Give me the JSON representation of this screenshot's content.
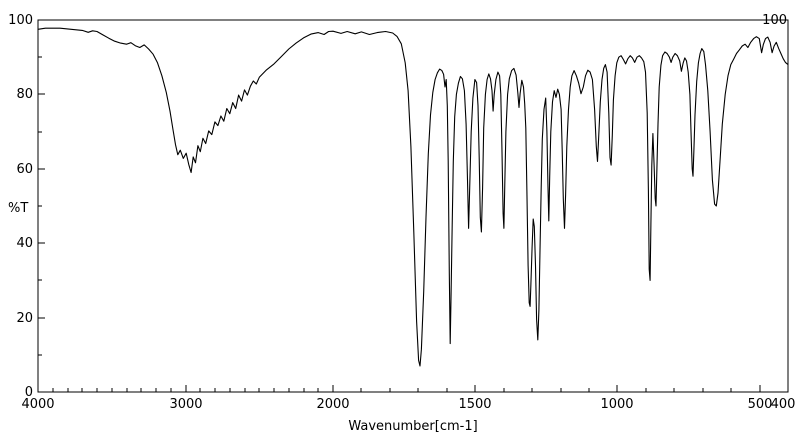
{
  "chart_data": {
    "type": "line",
    "xlabel": "Wavenumber[cm-1]",
    "ylabel": "%T",
    "colors": {
      "trace": "#000000",
      "frame": "#000000",
      "background": "#ffffff"
    },
    "x_axis": {
      "min": 400,
      "max": 4000,
      "reversed": true,
      "scale_break_at": 2000,
      "major_ticks": [
        4000,
        3000,
        2000,
        1500,
        1000,
        500,
        400
      ],
      "minor_tick_step": 100
    },
    "y_axis": {
      "min": 0,
      "max": 100,
      "major_ticks": [
        100,
        80,
        60,
        40,
        20,
        0
      ],
      "minor_tick_step": 10,
      "top_right_label": "100"
    },
    "series": [
      {
        "name": "%T",
        "color": "#000000",
        "points": [
          [
            4000,
            97.5
          ],
          [
            3950,
            97.8
          ],
          [
            3900,
            97.8
          ],
          [
            3850,
            97.8
          ],
          [
            3800,
            97.6
          ],
          [
            3750,
            97.4
          ],
          [
            3700,
            97.2
          ],
          [
            3660,
            96.7
          ],
          [
            3630,
            97.1
          ],
          [
            3600,
            96.9
          ],
          [
            3560,
            96.0
          ],
          [
            3520,
            95.1
          ],
          [
            3480,
            94.3
          ],
          [
            3440,
            93.8
          ],
          [
            3400,
            93.5
          ],
          [
            3370,
            93.9
          ],
          [
            3340,
            93.1
          ],
          [
            3310,
            92.6
          ],
          [
            3280,
            93.3
          ],
          [
            3250,
            92.2
          ],
          [
            3220,
            90.8
          ],
          [
            3190,
            88.5
          ],
          [
            3160,
            85.0
          ],
          [
            3130,
            80.5
          ],
          [
            3105,
            75.5
          ],
          [
            3085,
            70.5
          ],
          [
            3068,
            66.5
          ],
          [
            3052,
            63.8
          ],
          [
            3035,
            65.0
          ],
          [
            3015,
            62.8
          ],
          [
            2995,
            64.2
          ],
          [
            2978,
            61.2
          ],
          [
            2962,
            59.0
          ],
          [
            2948,
            63.2
          ],
          [
            2932,
            61.6
          ],
          [
            2916,
            66.2
          ],
          [
            2900,
            64.6
          ],
          [
            2882,
            68.2
          ],
          [
            2863,
            66.8
          ],
          [
            2843,
            70.2
          ],
          [
            2822,
            69.2
          ],
          [
            2801,
            72.6
          ],
          [
            2780,
            71.6
          ],
          [
            2760,
            74.2
          ],
          [
            2740,
            72.8
          ],
          [
            2720,
            76.2
          ],
          [
            2700,
            74.8
          ],
          [
            2680,
            77.8
          ],
          [
            2660,
            76.2
          ],
          [
            2640,
            79.8
          ],
          [
            2620,
            78.2
          ],
          [
            2600,
            81.2
          ],
          [
            2580,
            79.8
          ],
          [
            2560,
            82.2
          ],
          [
            2540,
            83.6
          ],
          [
            2520,
            82.8
          ],
          [
            2500,
            84.6
          ],
          [
            2450,
            86.6
          ],
          [
            2400,
            88.2
          ],
          [
            2350,
            90.2
          ],
          [
            2300,
            92.2
          ],
          [
            2250,
            93.8
          ],
          [
            2200,
            95.2
          ],
          [
            2150,
            96.2
          ],
          [
            2100,
            96.6
          ],
          [
            2060,
            96.1
          ],
          [
            2030,
            96.9
          ],
          [
            2000,
            97.0
          ],
          [
            1972,
            96.4
          ],
          [
            1950,
            96.9
          ],
          [
            1922,
            96.3
          ],
          [
            1900,
            96.8
          ],
          [
            1872,
            96.1
          ],
          [
            1845,
            96.6
          ],
          [
            1815,
            96.9
          ],
          [
            1790,
            96.5
          ],
          [
            1775,
            95.6
          ],
          [
            1760,
            93.6
          ],
          [
            1746,
            88.5
          ],
          [
            1736,
            81.0
          ],
          [
            1726,
            66.0
          ],
          [
            1716,
            43.0
          ],
          [
            1706,
            19.0
          ],
          [
            1699,
            8.5
          ],
          [
            1694,
            7.0
          ],
          [
            1689,
            11.5
          ],
          [
            1681,
            27.0
          ],
          [
            1673,
            47.0
          ],
          [
            1665,
            64.0
          ],
          [
            1657,
            74.5
          ],
          [
            1649,
            80.5
          ],
          [
            1641,
            84.0
          ],
          [
            1633,
            85.8
          ],
          [
            1625,
            86.8
          ],
          [
            1617,
            86.4
          ],
          [
            1611,
            85.4
          ],
          [
            1606,
            82.0
          ],
          [
            1602,
            84.0
          ],
          [
            1598,
            77.0
          ],
          [
            1595,
            62.0
          ],
          [
            1591,
            32.0
          ],
          [
            1588,
            13.0
          ],
          [
            1585,
            25.0
          ],
          [
            1581,
            45.0
          ],
          [
            1577,
            62.0
          ],
          [
            1572,
            74.0
          ],
          [
            1566,
            80.0
          ],
          [
            1559,
            83.0
          ],
          [
            1552,
            84.8
          ],
          [
            1545,
            84.2
          ],
          [
            1538,
            81.0
          ],
          [
            1532,
            72.0
          ],
          [
            1527,
            57.0
          ],
          [
            1523,
            44.0
          ],
          [
            1519,
            56.0
          ],
          [
            1514,
            70.0
          ],
          [
            1508,
            79.0
          ],
          [
            1501,
            84.0
          ],
          [
            1495,
            83.2
          ],
          [
            1490,
            77.0
          ],
          [
            1486,
            63.0
          ],
          [
            1482,
            47.0
          ],
          [
            1478,
            43.0
          ],
          [
            1474,
            55.0
          ],
          [
            1470,
            71.0
          ],
          [
            1464,
            80.0
          ],
          [
            1458,
            84.0
          ],
          [
            1452,
            85.5
          ],
          [
            1446,
            84.2
          ],
          [
            1441,
            81.0
          ],
          [
            1437,
            75.5
          ],
          [
            1433,
            80.0
          ],
          [
            1427,
            84.0
          ],
          [
            1420,
            86.0
          ],
          [
            1414,
            85.0
          ],
          [
            1410,
            80.0
          ],
          [
            1406,
            66.0
          ],
          [
            1402,
            48.0
          ],
          [
            1399,
            44.0
          ],
          [
            1396,
            56.0
          ],
          [
            1392,
            70.0
          ],
          [
            1386,
            80.0
          ],
          [
            1380,
            84.2
          ],
          [
            1372,
            86.4
          ],
          [
            1364,
            87.0
          ],
          [
            1356,
            85.2
          ],
          [
            1350,
            80.5
          ],
          [
            1346,
            76.5
          ],
          [
            1342,
            80.2
          ],
          [
            1336,
            83.8
          ],
          [
            1330,
            82.0
          ],
          [
            1326,
            77.5
          ],
          [
            1322,
            71.0
          ],
          [
            1318,
            54.0
          ],
          [
            1314,
            34.0
          ],
          [
            1310,
            24.0
          ],
          [
            1307,
            23.0
          ],
          [
            1304,
            29.0
          ],
          [
            1300,
            39.0
          ],
          [
            1296,
            46.5
          ],
          [
            1292,
            44.5
          ],
          [
            1288,
            34.0
          ],
          [
            1284,
            19.5
          ],
          [
            1280,
            14.0
          ],
          [
            1276,
            22.0
          ],
          [
            1272,
            38.0
          ],
          [
            1268,
            55.0
          ],
          [
            1264,
            68.0
          ],
          [
            1258,
            76.0
          ],
          [
            1252,
            79.0
          ],
          [
            1248,
            70.0
          ],
          [
            1244,
            55.0
          ],
          [
            1241,
            46.0
          ],
          [
            1238,
            58.0
          ],
          [
            1234,
            70.0
          ],
          [
            1228,
            78.0
          ],
          [
            1222,
            81.0
          ],
          [
            1216,
            79.2
          ],
          [
            1210,
            81.4
          ],
          [
            1204,
            80.0
          ],
          [
            1198,
            76.0
          ],
          [
            1194,
            65.0
          ],
          [
            1190,
            52.0
          ],
          [
            1186,
            44.0
          ],
          [
            1182,
            53.0
          ],
          [
            1178,
            66.0
          ],
          [
            1172,
            76.0
          ],
          [
            1166,
            82.0
          ],
          [
            1160,
            85.0
          ],
          [
            1152,
            86.4
          ],
          [
            1144,
            85.0
          ],
          [
            1136,
            83.0
          ],
          [
            1128,
            80.2
          ],
          [
            1120,
            82.0
          ],
          [
            1112,
            85.0
          ],
          [
            1104,
            86.5
          ],
          [
            1096,
            86.0
          ],
          [
            1088,
            84.0
          ],
          [
            1080,
            76.0
          ],
          [
            1074,
            66.0
          ],
          [
            1070,
            62.0
          ],
          [
            1066,
            68.0
          ],
          [
            1060,
            78.0
          ],
          [
            1054,
            84.0
          ],
          [
            1048,
            87.0
          ],
          [
            1042,
            88.0
          ],
          [
            1036,
            86.0
          ],
          [
            1030,
            75.0
          ],
          [
            1026,
            63.0
          ],
          [
            1022,
            61.0
          ],
          [
            1018,
            69.0
          ],
          [
            1014,
            78.5
          ],
          [
            1008,
            85.0
          ],
          [
            1002,
            88.5
          ],
          [
            995,
            90.0
          ],
          [
            987,
            90.4
          ],
          [
            979,
            89.4
          ],
          [
            971,
            88.2
          ],
          [
            963,
            89.6
          ],
          [
            955,
            90.4
          ],
          [
            947,
            89.8
          ],
          [
            939,
            88.6
          ],
          [
            931,
            90.0
          ],
          [
            923,
            90.4
          ],
          [
            915,
            89.8
          ],
          [
            907,
            88.8
          ],
          [
            901,
            86.0
          ],
          [
            895,
            75.0
          ],
          [
            891,
            54.0
          ],
          [
            888,
            33.0
          ],
          [
            885,
            30.0
          ],
          [
            882,
            45.0
          ],
          [
            879,
            61.0
          ],
          [
            875,
            69.5
          ],
          [
            871,
            61.0
          ],
          [
            867,
            52.0
          ],
          [
            864,
            50.0
          ],
          [
            861,
            60.0
          ],
          [
            857,
            72.0
          ],
          [
            853,
            82.0
          ],
          [
            847,
            87.8
          ],
          [
            841,
            90.4
          ],
          [
            833,
            91.4
          ],
          [
            825,
            91.0
          ],
          [
            817,
            90.0
          ],
          [
            811,
            88.6
          ],
          [
            805,
            90.0
          ],
          [
            797,
            91.0
          ],
          [
            789,
            90.4
          ],
          [
            781,
            89.0
          ],
          [
            775,
            86.2
          ],
          [
            769,
            88.4
          ],
          [
            763,
            89.8
          ],
          [
            757,
            89.0
          ],
          [
            751,
            86.0
          ],
          [
            745,
            80.0
          ],
          [
            741,
            70.0
          ],
          [
            737,
            60.0
          ],
          [
            734,
            58.0
          ],
          [
            731,
            65.0
          ],
          [
            727,
            74.5
          ],
          [
            721,
            83.5
          ],
          [
            715,
            88.5
          ],
          [
            709,
            91.0
          ],
          [
            703,
            92.3
          ],
          [
            696,
            91.5
          ],
          [
            690,
            88.0
          ],
          [
            682,
            81.0
          ],
          [
            674,
            70.0
          ],
          [
            666,
            57.0
          ],
          [
            658,
            50.5
          ],
          [
            652,
            50.0
          ],
          [
            646,
            53.5
          ],
          [
            639,
            62.0
          ],
          [
            631,
            72.0
          ],
          [
            621,
            80.0
          ],
          [
            611,
            85.0
          ],
          [
            601,
            88.0
          ],
          [
            591,
            89.5
          ],
          [
            581,
            91.0
          ],
          [
            571,
            92.0
          ],
          [
            561,
            93.0
          ],
          [
            551,
            93.5
          ],
          [
            541,
            92.6
          ],
          [
            531,
            94.0
          ],
          [
            521,
            95.0
          ],
          [
            511,
            95.5
          ],
          [
            501,
            95.0
          ],
          [
            493,
            91.2
          ],
          [
            487,
            93.4
          ],
          [
            479,
            95.0
          ],
          [
            471,
            95.4
          ],
          [
            463,
            94.0
          ],
          [
            456,
            91.2
          ],
          [
            449,
            93.0
          ],
          [
            441,
            94.0
          ],
          [
            433,
            92.4
          ],
          [
            425,
            91.0
          ],
          [
            417,
            89.6
          ],
          [
            409,
            88.6
          ],
          [
            400,
            88.0
          ]
        ]
      }
    ]
  }
}
